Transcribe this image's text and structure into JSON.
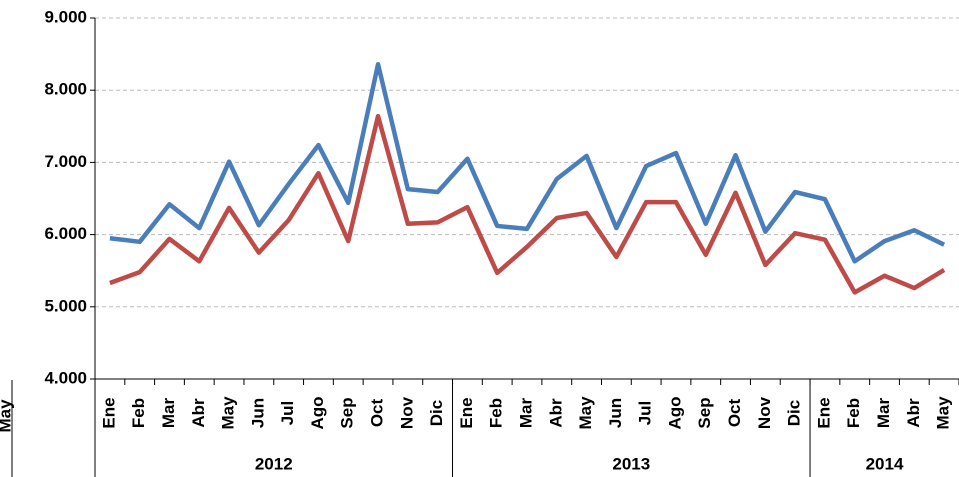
{
  "chart_data": {
    "type": "line",
    "groups": [
      {
        "label": "2012",
        "categories": [
          "Ene",
          "Feb",
          "Mar",
          "Abr",
          "May",
          "Jun",
          "Jul",
          "Ago",
          "Sep",
          "Oct",
          "Nov",
          "Dic"
        ]
      },
      {
        "label": "2013",
        "categories": [
          "Ene",
          "Feb",
          "Mar",
          "Abr",
          "May",
          "Jun",
          "Jul",
          "Ago",
          "Sep",
          "Oct",
          "Nov",
          "Dic"
        ]
      },
      {
        "label": "2014",
        "categories": [
          "Ene",
          "Feb",
          "Mar",
          "Abr",
          "May"
        ]
      }
    ],
    "series": [
      {
        "color": "#4a7ebb",
        "values": [
          5950,
          5900,
          6420,
          6090,
          7010,
          6130,
          6700,
          7240,
          6440,
          8360,
          6630,
          6590,
          7050,
          6120,
          6080,
          6770,
          7090,
          6090,
          6950,
          7130,
          6150,
          7100,
          6040,
          6590,
          6490,
          5630,
          5910,
          6060,
          5860
        ]
      },
      {
        "color": "#be4b48",
        "values": [
          5330,
          5480,
          5940,
          5630,
          6370,
          5750,
          6200,
          6850,
          5910,
          7640,
          6150,
          6170,
          6380,
          5470,
          5830,
          6230,
          6300,
          5690,
          6450,
          6450,
          5720,
          6580,
          5580,
          6020,
          5930,
          5200,
          5430,
          5260,
          5510
        ]
      }
    ],
    "ylim": [
      4000,
      9000
    ],
    "yticks": [
      {
        "value": 4000,
        "label": "4.000"
      },
      {
        "value": 5000,
        "label": "5.000"
      },
      {
        "value": 6000,
        "label": "6.000"
      },
      {
        "value": 7000,
        "label": "7.000"
      },
      {
        "value": 8000,
        "label": "8.000"
      },
      {
        "value": 9000,
        "label": "9.000"
      }
    ],
    "grid": true
  },
  "cropped_label": "May"
}
